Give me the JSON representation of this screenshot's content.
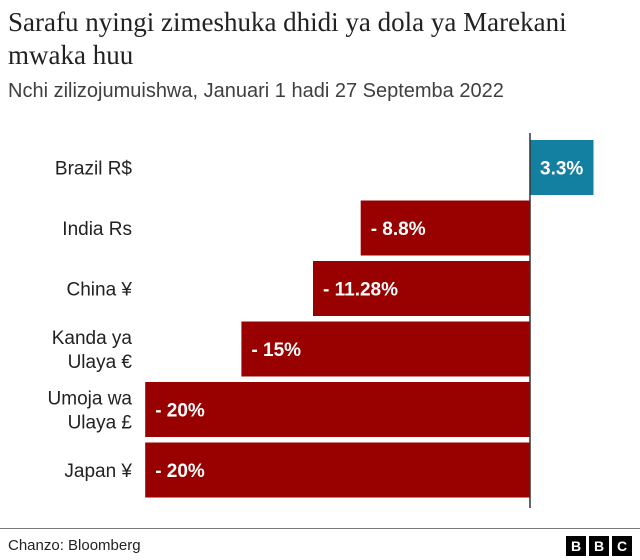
{
  "title": "Sarafu nyingi zimeshuka dhidi ya dola ya Marekani mwaka huu",
  "subtitle": "Nchi zilizojumuishwa, Januari 1 hadi 27 Septemba 2022",
  "source": "Chanzo: Bloomberg",
  "logo": [
    "B",
    "B",
    "C"
  ],
  "colors": {
    "negative": "#990000",
    "positive": "#1380a1",
    "axis": "#333333"
  },
  "chart_data": {
    "type": "bar",
    "orientation": "horizontal",
    "categories": [
      [
        "Brazil R$"
      ],
      [
        "India Rs"
      ],
      [
        "China ¥"
      ],
      [
        "Kanda ya",
        "Ulaya €"
      ],
      [
        "Umoja wa",
        "Ulaya £"
      ],
      [
        "Japan ¥"
      ]
    ],
    "values": [
      3.3,
      -8.8,
      -11.28,
      -15,
      -20,
      -20
    ],
    "value_labels": [
      "3.3%",
      "- 8.8%",
      "- 11.28%",
      "- 15%",
      "- 20%",
      "- 20%"
    ],
    "unit": "%",
    "baseline": 0,
    "xlim": [
      -20.5,
      3.3
    ]
  }
}
